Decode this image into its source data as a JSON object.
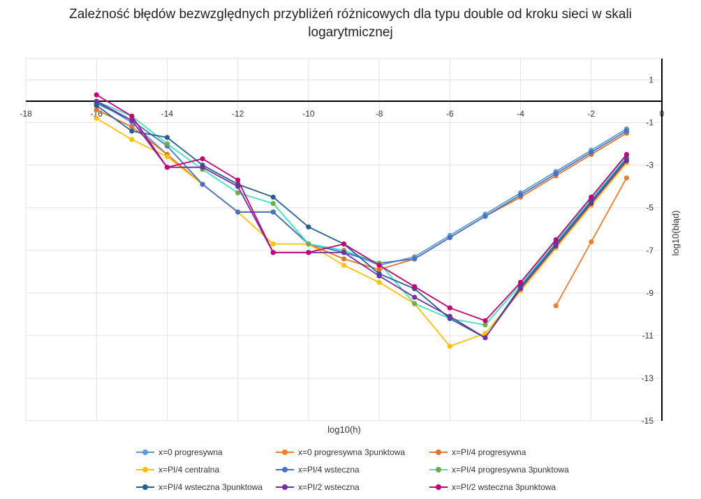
{
  "chart_data": {
    "type": "line",
    "title_lines": [
      "Zależność błędów bezwzględnych przybliżeń różnicowych dla typu double od kroku sieci w skali",
      "logarytmicznej"
    ],
    "xlabel": "log10(h)",
    "ylabel": "log10(błąd)",
    "xlim": [
      -18,
      0
    ],
    "ylim": [
      -15,
      2
    ],
    "x_ticks": [
      "-18",
      "-16",
      "-14",
      "-12",
      "-10",
      "-8",
      "-6",
      "-4",
      "-2",
      "0"
    ],
    "y_ticks": [
      "1",
      "-1",
      "-3",
      "-5",
      "-7",
      "-9",
      "-11",
      "-13",
      "-15"
    ],
    "grid": true,
    "legend_position": "bottom",
    "series": [
      {
        "name": "x=0 progresywna",
        "color": "#5b9bd5",
        "x": [
          -16,
          -15,
          -14,
          -13,
          -12,
          -11,
          -10,
          -9,
          -8,
          -7,
          -6,
          -5,
          -4,
          -3,
          -2,
          -1
        ],
        "y": [
          0,
          -1,
          -2.5,
          -3.9,
          -5.2,
          -5.2,
          -6.7,
          -7,
          -7.7,
          -7.3,
          -6.3,
          -5.3,
          -4.3,
          -3.3,
          -2.3,
          -1.3
        ]
      },
      {
        "name": "x=0 progresywna 3punktowa",
        "color": "#ed7d31",
        "x": [
          -3,
          -2,
          -1
        ],
        "y": [
          -9.6,
          -6.6,
          -3.6
        ]
      },
      {
        "name": "x=PI/4 progresywna",
        "color": "#e0762a",
        "x": [
          -16,
          -15,
          -14,
          -13,
          -12,
          -11,
          -10,
          -9,
          -8,
          -7,
          -6,
          -5,
          -4,
          -3,
          -2,
          -1
        ],
        "y": [
          -0.4,
          -1.2,
          -2.5,
          -3.9,
          -5.2,
          -5.2,
          -6.7,
          -7.4,
          -7.9,
          -7.4,
          -6.4,
          -5.4,
          -4.5,
          -3.5,
          -2.5,
          -1.5
        ]
      },
      {
        "name": "x=PI/4 centralna",
        "color": "#ffc000",
        "x": [
          -16,
          -15,
          -14,
          -13,
          -12,
          -11,
          -10,
          -9,
          -8,
          -7,
          -6,
          -5,
          -4,
          -3,
          -2,
          -1
        ],
        "y": [
          -0.8,
          -1.8,
          -2.6,
          -3.9,
          -5.2,
          -6.7,
          -6.7,
          -7.7,
          -8.5,
          -9.5,
          -11.5,
          -10.9,
          -8.9,
          -6.9,
          -4.9,
          -2.9
        ]
      },
      {
        "name": "x=PI/4 wsteczna",
        "color": "#4472c4",
        "x": [
          -16,
          -15,
          -14,
          -13,
          -12,
          -11,
          -10,
          -9,
          -8,
          -7,
          -6,
          -5,
          -4,
          -3,
          -2,
          -1
        ],
        "y": [
          -0.1,
          -0.9,
          -2.1,
          -3.9,
          -5.2,
          -5.2,
          -6.7,
          -7.1,
          -7.6,
          -7.4,
          -6.4,
          -5.4,
          -4.4,
          -3.4,
          -2.4,
          -1.4
        ]
      },
      {
        "name": "x=PI/4 progresywna 3punktowa",
        "color": "#70ad47",
        "line_color": "#40e0c0",
        "x": [
          -16,
          -15,
          -14,
          -13,
          -12,
          -11,
          -10,
          -9,
          -8,
          -7,
          -6,
          -5,
          -4,
          -3,
          -2,
          -1
        ],
        "y": [
          0,
          -0.7,
          -2,
          -3.2,
          -4.3,
          -4.8,
          -6.7,
          -7,
          -7.6,
          -9.5,
          -10.2,
          -10.5,
          -8.6,
          -6.6,
          -4.6,
          -2.6
        ]
      },
      {
        "name": "x=PI/4 wsteczna 3punktowa",
        "color": "#255e91",
        "x": [
          -16,
          -15,
          -14,
          -13,
          -12,
          -11,
          -10,
          -9,
          -8,
          -7,
          -6,
          -5,
          -4,
          -3,
          -2,
          -1
        ],
        "y": [
          -0.2,
          -1.4,
          -1.7,
          -3,
          -3.9,
          -4.5,
          -5.9,
          -6.7,
          -8.1,
          -8.8,
          -10.2,
          -11.1,
          -8.7,
          -6.7,
          -4.7,
          -2.7
        ]
      },
      {
        "name": "x=PI/2 wsteczna",
        "color": "#7030a0",
        "x": [
          -16,
          -15,
          -14,
          -13,
          -12,
          -11,
          -10,
          -9,
          -8,
          -7,
          -6,
          -5,
          -4,
          -3,
          -2,
          -1
        ],
        "y": [
          0,
          -0.9,
          -3.1,
          -3.1,
          -4,
          -7.1,
          -7.1,
          -7.1,
          -8.2,
          -9.2,
          -10.1,
          -11.1,
          -8.8,
          -6.8,
          -4.8,
          -2.8
        ]
      },
      {
        "name": "x=PI/2 wsteczna 3punktowa",
        "color": "#c0007a",
        "x": [
          -16,
          -15,
          -14,
          -13,
          -12,
          -11,
          -10,
          -9,
          -8,
          -7,
          -6,
          -5,
          -4,
          -3,
          -2,
          -1
        ],
        "y": [
          0.3,
          -0.7,
          -3.1,
          -2.7,
          -3.7,
          -7.1,
          -7.1,
          -6.7,
          -7.7,
          -8.7,
          -9.7,
          -10.3,
          -8.5,
          -6.5,
          -4.5,
          -2.5
        ]
      }
    ]
  }
}
